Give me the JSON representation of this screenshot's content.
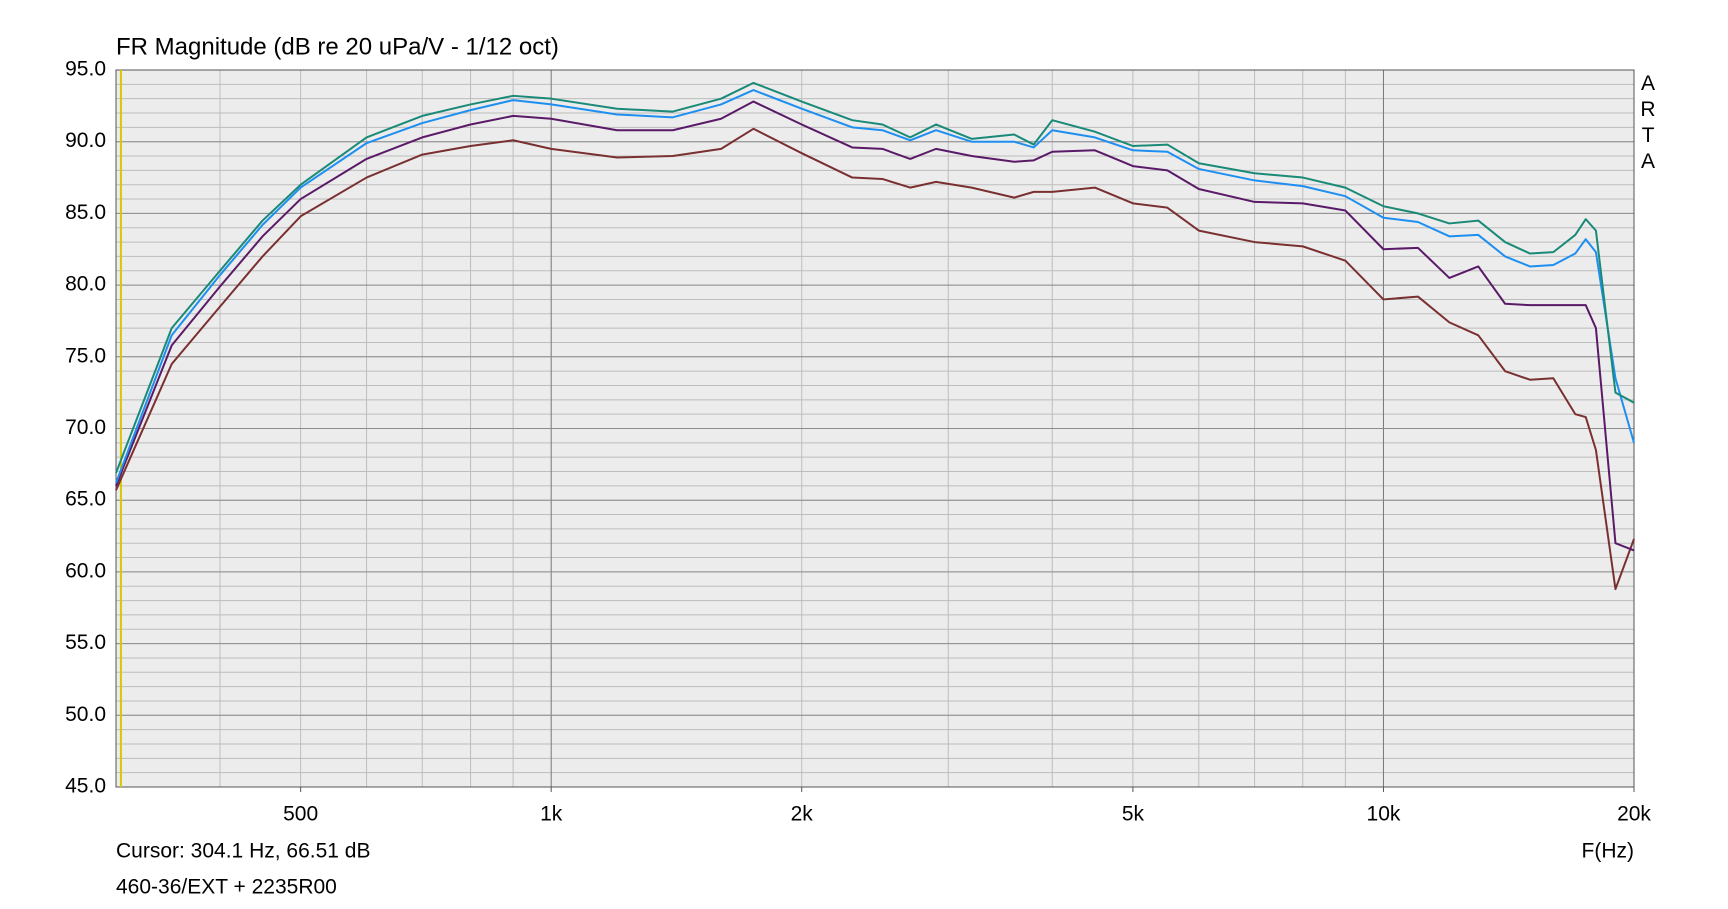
{
  "chart_data": {
    "type": "line",
    "title": "FR Magnitude (dB re 20 uPa/V - 1/12 oct)",
    "watermark": "ARTA",
    "x_label": "F(Hz)",
    "cursor_text": "Cursor: 304.1 Hz, 66.51 dB",
    "cursor_x": 304.1,
    "footer": "460-36/EXT + 2235R00",
    "x_scale": "log",
    "grid": true,
    "xlim": [
      300,
      20000
    ],
    "xticks": [
      {
        "value": 500,
        "label": "500"
      },
      {
        "value": 1000,
        "label": "1k"
      },
      {
        "value": 2000,
        "label": "2k"
      },
      {
        "value": 5000,
        "label": "5k"
      },
      {
        "value": 10000,
        "label": "10k"
      },
      {
        "value": 20000,
        "label": "20k"
      }
    ],
    "ylim": [
      45,
      95
    ],
    "yticks": [
      {
        "value": 45,
        "label": "45.0"
      },
      {
        "value": 50,
        "label": "50.0"
      },
      {
        "value": 55,
        "label": "55.0"
      },
      {
        "value": 60,
        "label": "60.0"
      },
      {
        "value": 65,
        "label": "65.0"
      },
      {
        "value": 70,
        "label": "70.0"
      },
      {
        "value": 75,
        "label": "75.0"
      },
      {
        "value": 80,
        "label": "80.0"
      },
      {
        "value": 85,
        "label": "85.0"
      },
      {
        "value": 90,
        "label": "90.0"
      },
      {
        "value": 95,
        "label": "95.0"
      }
    ],
    "x": [
      300,
      350,
      400,
      450,
      500,
      600,
      700,
      800,
      900,
      1000,
      1200,
      1400,
      1600,
      1750,
      2000,
      2300,
      2500,
      2700,
      2900,
      3200,
      3600,
      3800,
      4000,
      4500,
      5000,
      5500,
      6000,
      7000,
      8000,
      9000,
      10000,
      11000,
      12000,
      13000,
      14000,
      15000,
      16000,
      17000,
      17500,
      18000,
      19000,
      20000
    ],
    "series": [
      {
        "color": "#1a8a78",
        "values": [
          66.9,
          77,
          81,
          84.5,
          87,
          90.3,
          91.8,
          92.6,
          93.2,
          93,
          92.3,
          92.1,
          93,
          94.1,
          92.8,
          91.5,
          91.2,
          90.3,
          91.2,
          90.2,
          90.5,
          89.8,
          91.5,
          90.7,
          89.7,
          89.8,
          88.5,
          87.8,
          87.5,
          86.8,
          85.5,
          85,
          84.3,
          84.5,
          83,
          82.2,
          82.3,
          83.5,
          84.6,
          83.8,
          72.5,
          71.8
        ]
      },
      {
        "color": "#1e8ff0",
        "values": [
          66.2,
          76.5,
          80.7,
          84.2,
          86.8,
          89.9,
          91.3,
          92.2,
          92.9,
          92.6,
          91.9,
          91.7,
          92.6,
          93.6,
          92.3,
          91,
          90.8,
          90.1,
          90.8,
          90,
          90,
          89.6,
          90.8,
          90.3,
          89.4,
          89.3,
          88.1,
          87.3,
          86.9,
          86.2,
          84.7,
          84.4,
          83.4,
          83.5,
          82,
          81.3,
          81.4,
          82.2,
          83.2,
          82.3,
          73.5,
          69
        ]
      },
      {
        "color": "#5a1a68",
        "values": [
          66,
          75.8,
          79.9,
          83.4,
          86,
          88.8,
          90.3,
          91.2,
          91.8,
          91.6,
          90.8,
          90.8,
          91.6,
          92.8,
          91.2,
          89.6,
          89.5,
          88.8,
          89.5,
          89,
          88.6,
          88.7,
          89.3,
          89.4,
          88.3,
          88,
          86.7,
          85.8,
          85.7,
          85.2,
          82.5,
          82.6,
          80.5,
          81.3,
          78.7,
          78.6,
          78.6,
          78.6,
          78.6,
          77,
          62,
          61.5
        ]
      },
      {
        "color": "#7a3030",
        "values": [
          65.7,
          74.5,
          78.5,
          82,
          84.8,
          87.5,
          89.1,
          89.7,
          90.1,
          89.5,
          88.9,
          89,
          89.5,
          90.9,
          89.2,
          87.5,
          87.4,
          86.8,
          87.2,
          86.8,
          86.1,
          86.5,
          86.5,
          86.8,
          85.7,
          85.4,
          83.8,
          83,
          82.7,
          81.7,
          79,
          79.2,
          77.4,
          76.5,
          74,
          73.4,
          73.5,
          71,
          70.8,
          68.5,
          58.8,
          62.3
        ]
      }
    ]
  }
}
